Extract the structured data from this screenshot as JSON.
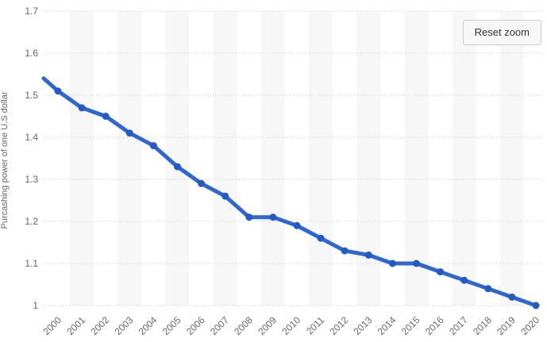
{
  "controls": {
    "reset_zoom_label": "Reset zoom"
  },
  "chart_data": {
    "type": "line",
    "title": "",
    "xlabel": "",
    "ylabel": "Purcashing power of one U.S dollar",
    "categories": [
      "2000",
      "2001",
      "2002",
      "2003",
      "2004",
      "2005",
      "2006",
      "2007",
      "2008",
      "2009",
      "2010",
      "2011",
      "2012",
      "2013",
      "2014",
      "2015",
      "2016",
      "2017",
      "2018",
      "2019",
      "2020"
    ],
    "values": [
      1.51,
      1.47,
      1.45,
      1.41,
      1.38,
      1.33,
      1.29,
      1.26,
      1.21,
      1.21,
      1.19,
      1.16,
      1.13,
      1.12,
      1.1,
      1.1,
      1.08,
      1.06,
      1.04,
      1.02,
      1.0
    ],
    "left_edge_clipped_lead_in_value": 1.54,
    "ylim": [
      1,
      1.7
    ],
    "yticks": [
      {
        "value": 1.7,
        "label": "1.7"
      },
      {
        "value": 1.6,
        "label": "1.6"
      },
      {
        "value": 1.5,
        "label": "1.5"
      },
      {
        "value": 1.4,
        "label": "1.4"
      },
      {
        "value": 1.3,
        "label": "1.3"
      },
      {
        "value": 1.2,
        "label": "1.2"
      },
      {
        "value": 1.1,
        "label": "1.1"
      },
      {
        "value": 1.0,
        "label": "1"
      }
    ],
    "grid": "horizontal dotted lines",
    "legend": false,
    "x_label_rotation_deg": -45,
    "plot_band_years": [
      "2001",
      "2003",
      "2005",
      "2007",
      "2009",
      "2011",
      "2013",
      "2015",
      "2017",
      "2019"
    ],
    "colors": {
      "line": "#2e68cf",
      "marker": "#2559c4",
      "plot_band": "#f7f7f7",
      "grid": "#cccccc",
      "axis_text": "#666666",
      "button_bg": "#f7f7f7",
      "button_border": "#cccccc",
      "button_text": "#333333"
    }
  }
}
